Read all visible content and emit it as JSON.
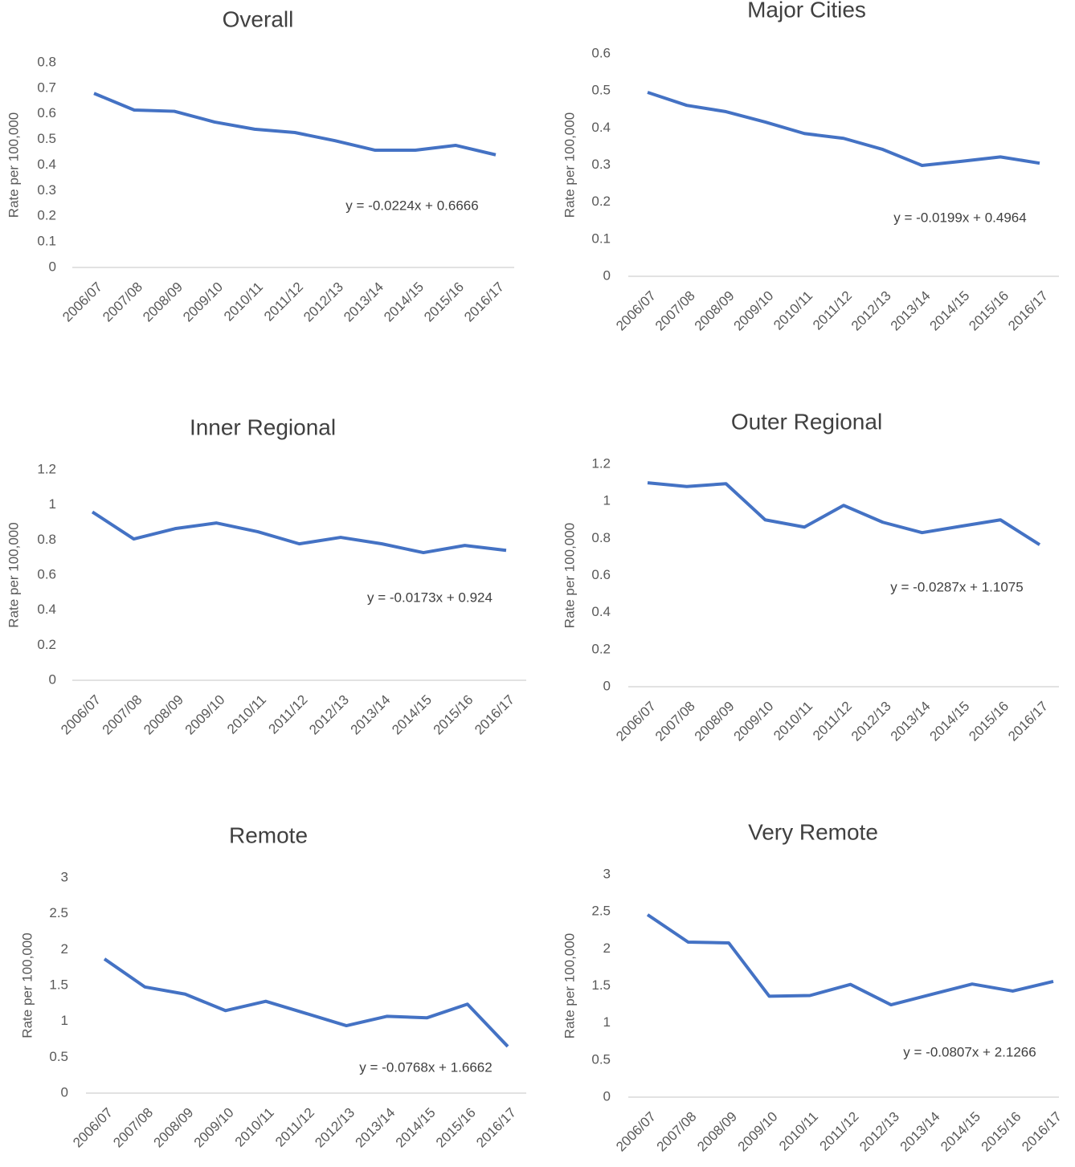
{
  "chart_data": [
    {
      "type": "line",
      "title": "Overall",
      "y_label": "Rate per 100,000",
      "annotation": "y = -0.0224x + 0.6666",
      "categories": [
        "2006/07",
        "2007/08",
        "2008/09",
        "2009/10",
        "2010/11",
        "2011/12",
        "2012/13",
        "2013/14",
        "2014/15",
        "2015/16",
        "2016/17"
      ],
      "series": [
        {
          "name": "Overall",
          "color": "#4472c4",
          "values": [
            0.68,
            0.615,
            0.61,
            0.568,
            0.54,
            0.527,
            0.495,
            0.458,
            0.458,
            0.477,
            0.44
          ]
        }
      ],
      "ylim": [
        0,
        0.8
      ],
      "yticks": [
        0,
        0.1,
        0.2,
        0.3,
        0.4,
        0.5,
        0.6,
        0.7,
        0.8
      ]
    },
    {
      "type": "line",
      "title": "Major Cities",
      "y_label": "Rate per 100,000",
      "annotation": "y = -0.0199x + 0.4964",
      "categories": [
        "2006/07",
        "2007/08",
        "2008/09",
        "2009/10",
        "2010/11",
        "2011/12",
        "2012/13",
        "2013/14",
        "2014/15",
        "2015/16",
        "2016/17"
      ],
      "series": [
        {
          "name": "Major Cities",
          "color": "#4472c4",
          "values": [
            0.496,
            0.461,
            0.444,
            0.416,
            0.385,
            0.372,
            0.342,
            0.299,
            0.31,
            0.322,
            0.305
          ]
        }
      ],
      "ylim": [
        0,
        0.6
      ],
      "yticks": [
        0,
        0.1,
        0.2,
        0.3,
        0.4,
        0.5,
        0.6
      ]
    },
    {
      "type": "line",
      "title": "Inner Regional",
      "y_label": "Rate per 100,000",
      "annotation": "y = -0.0173x + 0.924",
      "categories": [
        "2006/07",
        "2007/08",
        "2008/09",
        "2009/10",
        "2010/11",
        "2011/12",
        "2012/13",
        "2013/14",
        "2014/15",
        "2015/16",
        "2016/17"
      ],
      "series": [
        {
          "name": "Inner Regional",
          "color": "#4472c4",
          "values": [
            0.96,
            0.806,
            0.865,
            0.897,
            0.847,
            0.778,
            0.815,
            0.778,
            0.728,
            0.769,
            0.741
          ]
        }
      ],
      "ylim": [
        0,
        1.2
      ],
      "yticks": [
        0,
        0.2,
        0.4,
        0.6,
        0.8,
        1,
        1.2
      ]
    },
    {
      "type": "line",
      "title": "Outer Regional",
      "y_label": "Rate per 100,000",
      "annotation": "y = -0.0287x + 1.1075",
      "categories": [
        "2006/07",
        "2007/08",
        "2008/09",
        "2009/10",
        "2010/11",
        "2011/12",
        "2012/13",
        "2013/14",
        "2014/15",
        "2015/16",
        "2016/17"
      ],
      "series": [
        {
          "name": "Outer Regional",
          "color": "#4472c4",
          "values": [
            1.1,
            1.08,
            1.095,
            0.9,
            0.861,
            0.978,
            0.887,
            0.831,
            0.866,
            0.9,
            0.766
          ]
        }
      ],
      "ylim": [
        0,
        1.2
      ],
      "yticks": [
        0,
        0.2,
        0.4,
        0.6,
        0.8,
        1,
        1.2
      ]
    },
    {
      "type": "line",
      "title": "Remote",
      "y_label": "Rate per 100,000",
      "annotation": "y = -0.0768x + 1.6662",
      "categories": [
        "2006/07",
        "2007/08",
        "2008/09",
        "2009/10",
        "2010/11",
        "2011/12",
        "2012/13",
        "2013/14",
        "2014/15",
        "2015/16",
        "2016/17"
      ],
      "series": [
        {
          "name": "Remote",
          "color": "#4472c4",
          "values": [
            1.87,
            1.48,
            1.38,
            1.15,
            1.28,
            1.11,
            0.94,
            1.07,
            1.05,
            1.24,
            0.65
          ]
        }
      ],
      "ylim": [
        0,
        3
      ],
      "yticks": [
        0,
        0.5,
        1,
        1.5,
        2,
        2.5,
        3
      ]
    },
    {
      "type": "line",
      "title": "Very Remote",
      "y_label": "Rate per 100,000",
      "annotation": "y = -0.0807x + 2.1266",
      "categories": [
        "2006/07",
        "2007/08",
        "2008/09",
        "2009/10",
        "2010/11",
        "2011/12",
        "2012/13",
        "2013/14",
        "2014/15",
        "2015/16",
        "2016/17"
      ],
      "series": [
        {
          "name": "Very Remote",
          "color": "#4472c4",
          "values": [
            2.46,
            2.09,
            2.08,
            1.36,
            1.37,
            1.52,
            1.245,
            1.385,
            1.525,
            1.43,
            1.56
          ]
        }
      ],
      "ylim": [
        0,
        3
      ],
      "yticks": [
        0,
        0.5,
        1,
        1.5,
        2,
        2.5,
        3
      ]
    }
  ]
}
